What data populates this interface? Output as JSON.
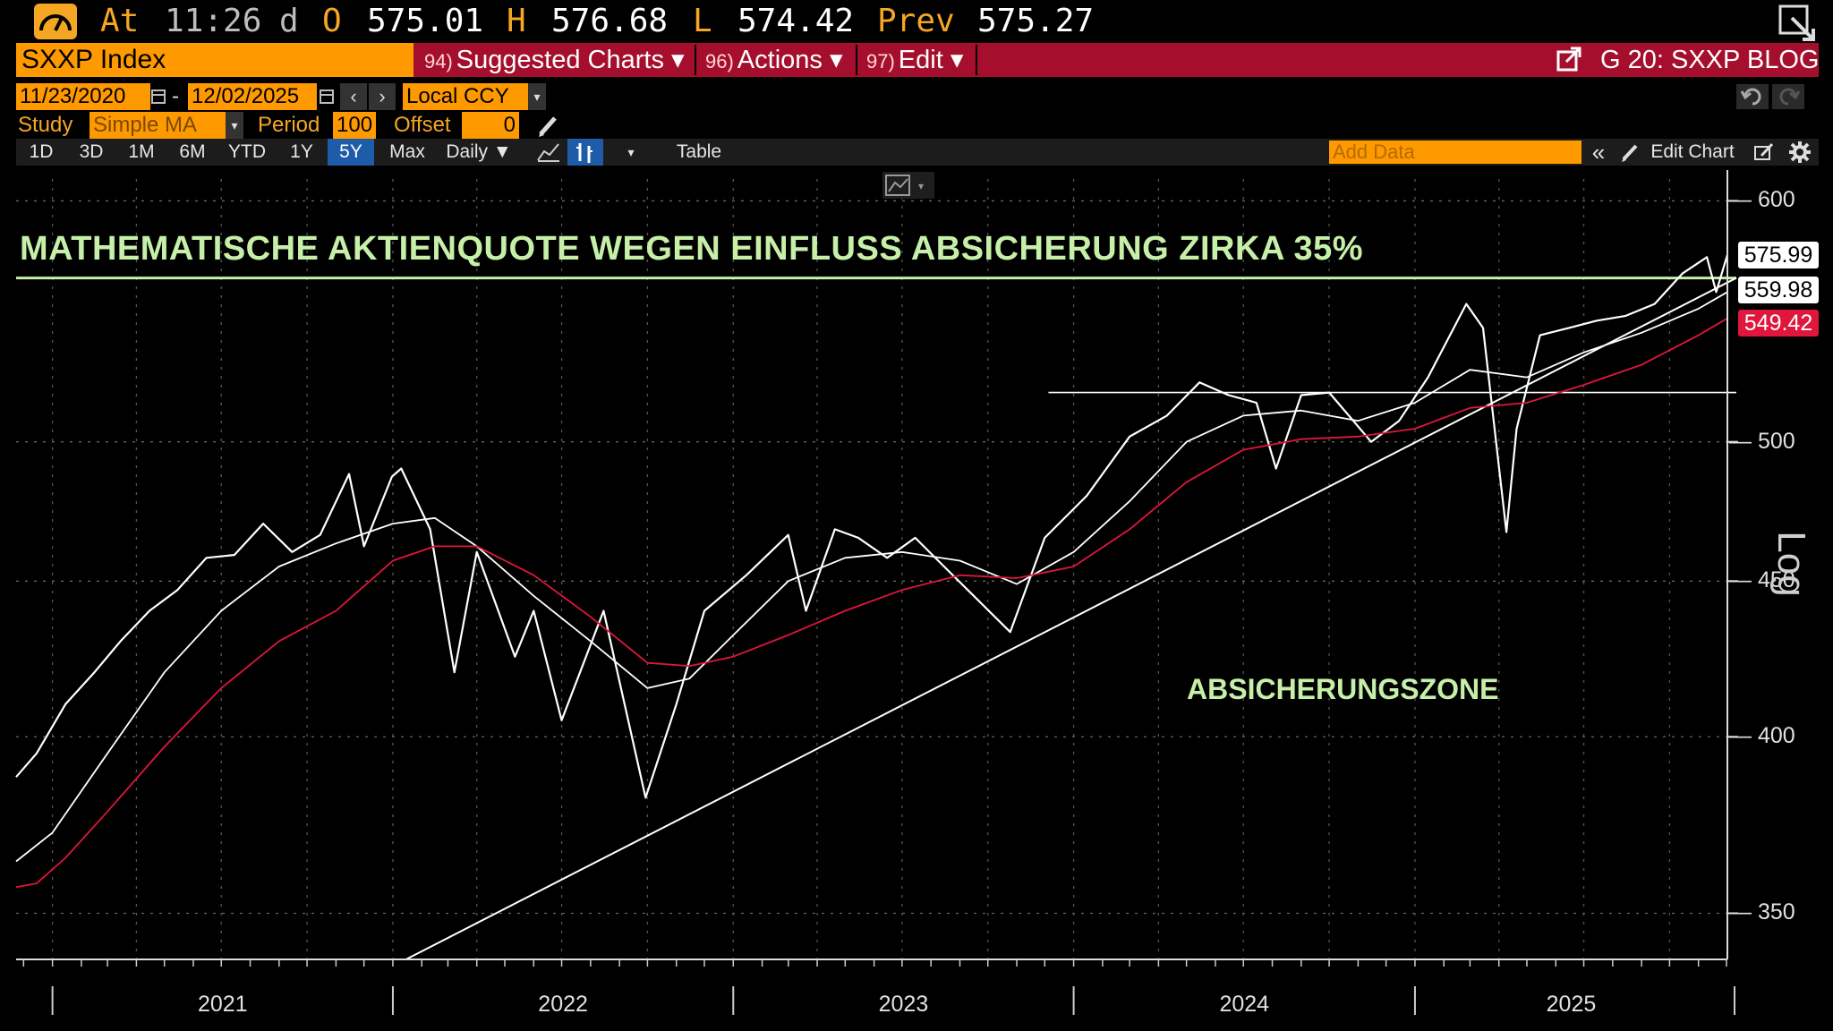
{
  "quote": {
    "at_label": "At",
    "time": "11:26",
    "d_label": "d",
    "o_label": "O",
    "open": "575.01",
    "h_label": "H",
    "high": "576.68",
    "l_label": "L",
    "low": "574.42",
    "prev_label": "Prev",
    "prev": "575.27"
  },
  "command_bar": {
    "ticker": "SXXP Index",
    "menu": [
      {
        "num": "94)",
        "label": "Suggested Charts ▾"
      },
      {
        "num": "96)",
        "label": "Actions ▾"
      },
      {
        "num": "97)",
        "label": "Edit ▾"
      }
    ],
    "right_label": "G 20: SXXP BLOG"
  },
  "controls": {
    "start_date": "11/23/2020",
    "end_date": "12/02/2025",
    "currency": "Local CCY",
    "study_label": "Study",
    "study_value": "Simple MA",
    "period_label": "Period",
    "period_value": "100",
    "offset_label": "Offset",
    "offset_value": "0"
  },
  "periods": [
    "1D",
    "3D",
    "1M",
    "6M",
    "YTD",
    "1Y",
    "5Y",
    "Max"
  ],
  "active_period": "5Y",
  "frequency": "Daily ▼",
  "table_label": "Table",
  "add_data_placeholder": "Add Data",
  "edit_chart_label": "Edit Chart",
  "colors": {
    "accent_orange": "#ff9900",
    "command_red": "#a50f2d",
    "price": "#ffffff",
    "ma_red": "#e0163c",
    "annotation_green": "#c6f0a8"
  },
  "chart_data": {
    "type": "line",
    "scale": "log",
    "scale_label": "Log",
    "ylim": [
      338,
      610
    ],
    "yticks": [
      350,
      400,
      450,
      500,
      600
    ],
    "xlim": [
      "2020-11-23",
      "2025-12-02"
    ],
    "xtick_labels": [
      "2021",
      "2022",
      "2023",
      "2024",
      "2025"
    ],
    "series": [
      {
        "role": "price",
        "color": "#ffffff",
        "last": "575.99",
        "points": [
          [
            "2020-11-23",
            388
          ],
          [
            "2020-12-15",
            395
          ],
          [
            "2021-01-15",
            410
          ],
          [
            "2021-02-15",
            420
          ],
          [
            "2021-03-15",
            430
          ],
          [
            "2021-04-15",
            440
          ],
          [
            "2021-05-15",
            447
          ],
          [
            "2021-06-15",
            458
          ],
          [
            "2021-07-15",
            459
          ],
          [
            "2021-08-15",
            470
          ],
          [
            "2021-09-15",
            460
          ],
          [
            "2021-10-15",
            466
          ],
          [
            "2021-11-15",
            488
          ],
          [
            "2021-12-01",
            462
          ],
          [
            "2021-12-31",
            487
          ],
          [
            "2022-01-10",
            490
          ],
          [
            "2022-02-10",
            468
          ],
          [
            "2022-03-08",
            420
          ],
          [
            "2022-04-01",
            460
          ],
          [
            "2022-05-12",
            425
          ],
          [
            "2022-06-01",
            440
          ],
          [
            "2022-07-01",
            405
          ],
          [
            "2022-08-15",
            440
          ],
          [
            "2022-09-29",
            382
          ],
          [
            "2022-11-01",
            410
          ],
          [
            "2022-12-01",
            440
          ],
          [
            "2023-01-15",
            452
          ],
          [
            "2023-03-01",
            466
          ],
          [
            "2023-03-20",
            440
          ],
          [
            "2023-04-20",
            468
          ],
          [
            "2023-05-15",
            465
          ],
          [
            "2023-06-15",
            458
          ],
          [
            "2023-07-15",
            465
          ],
          [
            "2023-08-15",
            455
          ],
          [
            "2023-10-25",
            433
          ],
          [
            "2023-12-01",
            465
          ],
          [
            "2024-01-15",
            480
          ],
          [
            "2024-03-01",
            502
          ],
          [
            "2024-04-10",
            510
          ],
          [
            "2024-05-15",
            523
          ],
          [
            "2024-06-15",
            518
          ],
          [
            "2024-07-15",
            515
          ],
          [
            "2024-08-05",
            490
          ],
          [
            "2024-09-01",
            518
          ],
          [
            "2024-10-01",
            519
          ],
          [
            "2024-11-15",
            500
          ],
          [
            "2024-12-15",
            508
          ],
          [
            "2025-01-15",
            525
          ],
          [
            "2025-02-25",
            555
          ],
          [
            "2025-03-15",
            545
          ],
          [
            "2025-04-09",
            467
          ],
          [
            "2025-04-20",
            505
          ],
          [
            "2025-05-15",
            542
          ],
          [
            "2025-06-15",
            545
          ],
          [
            "2025-07-15",
            548
          ],
          [
            "2025-08-15",
            550
          ],
          [
            "2025-09-15",
            555
          ],
          [
            "2025-10-15",
            568
          ],
          [
            "2025-11-10",
            575
          ],
          [
            "2025-11-20",
            560
          ],
          [
            "2025-12-02",
            576
          ]
        ]
      },
      {
        "role": "moving_average_short",
        "color": "#ffffff",
        "last": "559.98",
        "points": [
          [
            "2020-11-23",
            364
          ],
          [
            "2021-01-01",
            372
          ],
          [
            "2021-03-01",
            395
          ],
          [
            "2021-05-01",
            420
          ],
          [
            "2021-07-01",
            440
          ],
          [
            "2021-09-01",
            455
          ],
          [
            "2021-11-01",
            463
          ],
          [
            "2022-01-01",
            470
          ],
          [
            "2022-02-15",
            472
          ],
          [
            "2022-04-01",
            462
          ],
          [
            "2022-06-01",
            445
          ],
          [
            "2022-08-01",
            430
          ],
          [
            "2022-10-01",
            415
          ],
          [
            "2022-11-15",
            418
          ],
          [
            "2023-01-01",
            432
          ],
          [
            "2023-03-01",
            450
          ],
          [
            "2023-05-01",
            458
          ],
          [
            "2023-07-01",
            460
          ],
          [
            "2023-09-01",
            457
          ],
          [
            "2023-11-01",
            449
          ],
          [
            "2024-01-01",
            460
          ],
          [
            "2024-03-01",
            478
          ],
          [
            "2024-05-01",
            500
          ],
          [
            "2024-07-01",
            510
          ],
          [
            "2024-09-01",
            512
          ],
          [
            "2024-11-01",
            508
          ],
          [
            "2025-01-01",
            515
          ],
          [
            "2025-03-01",
            528
          ],
          [
            "2025-05-01",
            525
          ],
          [
            "2025-07-01",
            535
          ],
          [
            "2025-09-01",
            543
          ],
          [
            "2025-11-01",
            553
          ],
          [
            "2025-12-02",
            560
          ]
        ]
      },
      {
        "role": "moving_average_100",
        "color": "#e0163c",
        "last": "549.42",
        "points": [
          [
            "2020-11-23",
            357
          ],
          [
            "2020-12-15",
            358
          ],
          [
            "2021-01-15",
            365
          ],
          [
            "2021-03-01",
            378
          ],
          [
            "2021-05-01",
            397
          ],
          [
            "2021-07-01",
            415
          ],
          [
            "2021-09-01",
            430
          ],
          [
            "2021-11-01",
            440
          ],
          [
            "2022-01-01",
            457
          ],
          [
            "2022-02-15",
            462
          ],
          [
            "2022-04-01",
            462
          ],
          [
            "2022-06-01",
            452
          ],
          [
            "2022-08-01",
            438
          ],
          [
            "2022-10-01",
            423
          ],
          [
            "2022-11-15",
            422
          ],
          [
            "2023-01-01",
            425
          ],
          [
            "2023-03-01",
            432
          ],
          [
            "2023-05-01",
            440
          ],
          [
            "2023-07-01",
            447
          ],
          [
            "2023-09-01",
            452
          ],
          [
            "2023-11-01",
            451
          ],
          [
            "2024-01-01",
            455
          ],
          [
            "2024-03-01",
            468
          ],
          [
            "2024-05-01",
            485
          ],
          [
            "2024-07-01",
            497
          ],
          [
            "2024-09-01",
            501
          ],
          [
            "2024-11-01",
            502
          ],
          [
            "2025-01-01",
            505
          ],
          [
            "2025-03-01",
            513
          ],
          [
            "2025-05-01",
            515
          ],
          [
            "2025-07-01",
            522
          ],
          [
            "2025-09-01",
            530
          ],
          [
            "2025-11-01",
            542
          ],
          [
            "2025-12-02",
            549
          ]
        ]
      }
    ],
    "trendline": {
      "color": "#ffffff",
      "from": [
        "2022-01-15",
        338
      ],
      "to": [
        "2025-12-02",
        566
      ]
    },
    "horizontal_levels": [
      {
        "value": 519,
        "from": "2023-12-05",
        "to": "2025-12-02",
        "color": "#ffffff"
      },
      {
        "value": 566,
        "from": "2020-11-23",
        "to": "2025-12-02",
        "color": "#c6f0a8"
      }
    ],
    "annotations": {
      "headline": "MATHEMATISCHE AKTIENQUOTE WEGEN EINFLUSS ABSICHERUNG ZIRKA 35%",
      "zone": "ABSICHERUNGSZONE"
    },
    "grid": true
  }
}
